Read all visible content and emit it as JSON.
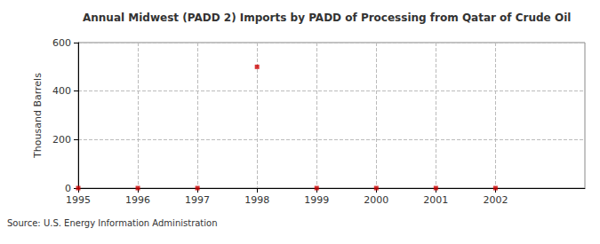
{
  "chart_data": {
    "type": "scatter",
    "title": "Annual Midwest (PADD 2) Imports by PADD of Processing from Qatar of Crude Oil",
    "y_label": "Thousand Barrels",
    "source": "Source: U.S. Energy Information Administration",
    "x": [
      1995,
      1996,
      1997,
      1998,
      1999,
      2000,
      2001,
      2002
    ],
    "values": [
      0,
      0,
      0,
      500,
      0,
      0,
      0,
      0
    ],
    "color": "#cc0000",
    "marker": "square",
    "xlim": [
      1995,
      2003.5
    ],
    "xticks": [
      1995,
      1996,
      1997,
      1998,
      1999,
      2000,
      2001,
      2002
    ],
    "ylim": [
      0,
      600
    ],
    "yticks": [
      0,
      200,
      400,
      600
    ],
    "grid": true
  }
}
